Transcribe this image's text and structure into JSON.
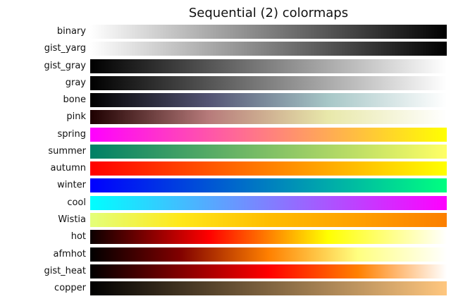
{
  "chart_data": {
    "type": "heatmap",
    "title": "Sequential (2) colormaps",
    "xlabel": "",
    "ylabel": "",
    "grid": false,
    "legend": null,
    "categories": [
      "binary",
      "gist_yarg",
      "gist_gray",
      "gray",
      "bone",
      "pink",
      "spring",
      "summer",
      "autumn",
      "winter",
      "cool",
      "Wistia",
      "hot",
      "afmhot",
      "gist_heat",
      "copper"
    ],
    "series": [
      {
        "name": "binary",
        "stops": [
          "#ffffff",
          "#000000"
        ]
      },
      {
        "name": "gist_yarg",
        "stops": [
          "#ffffff",
          "#000000"
        ]
      },
      {
        "name": "gist_gray",
        "stops": [
          "#000000",
          "#ffffff"
        ]
      },
      {
        "name": "gray",
        "stops": [
          "#000000",
          "#ffffff"
        ]
      },
      {
        "name": "bone",
        "stops": [
          "#000000",
          "#545474",
          "#a7c7c7",
          "#ffffff"
        ]
      },
      {
        "name": "pink",
        "stops": [
          "#1e0000",
          "#b77b7b",
          "#e8e8aa",
          "#ffffff"
        ]
      },
      {
        "name": "spring",
        "stops": [
          "#ff00ff",
          "#ffff00"
        ]
      },
      {
        "name": "summer",
        "stops": [
          "#008066",
          "#ffff66"
        ]
      },
      {
        "name": "autumn",
        "stops": [
          "#ff0000",
          "#ffff00"
        ]
      },
      {
        "name": "winter",
        "stops": [
          "#0000ff",
          "#00ff80"
        ]
      },
      {
        "name": "cool",
        "stops": [
          "#00ffff",
          "#ff00ff"
        ]
      },
      {
        "name": "Wistia",
        "stops": [
          "#e4ff7a",
          "#ffe81a",
          "#ffbd00",
          "#ffa000",
          "#fc7f00"
        ]
      },
      {
        "name": "hot",
        "stops": [
          "#0b0000",
          "#ff0000",
          "#ffff00",
          "#ffffff"
        ]
      },
      {
        "name": "afmhot",
        "stops": [
          "#000000",
          "#800000",
          "#ff8000",
          "#ffff80",
          "#ffffff"
        ]
      },
      {
        "name": "gist_heat",
        "stops": [
          "#000000",
          "#800000",
          "#ff0000",
          "#ff8000",
          "#ffffff"
        ]
      },
      {
        "name": "copper",
        "stops": [
          "#000000",
          "#ffc77f"
        ]
      }
    ]
  }
}
